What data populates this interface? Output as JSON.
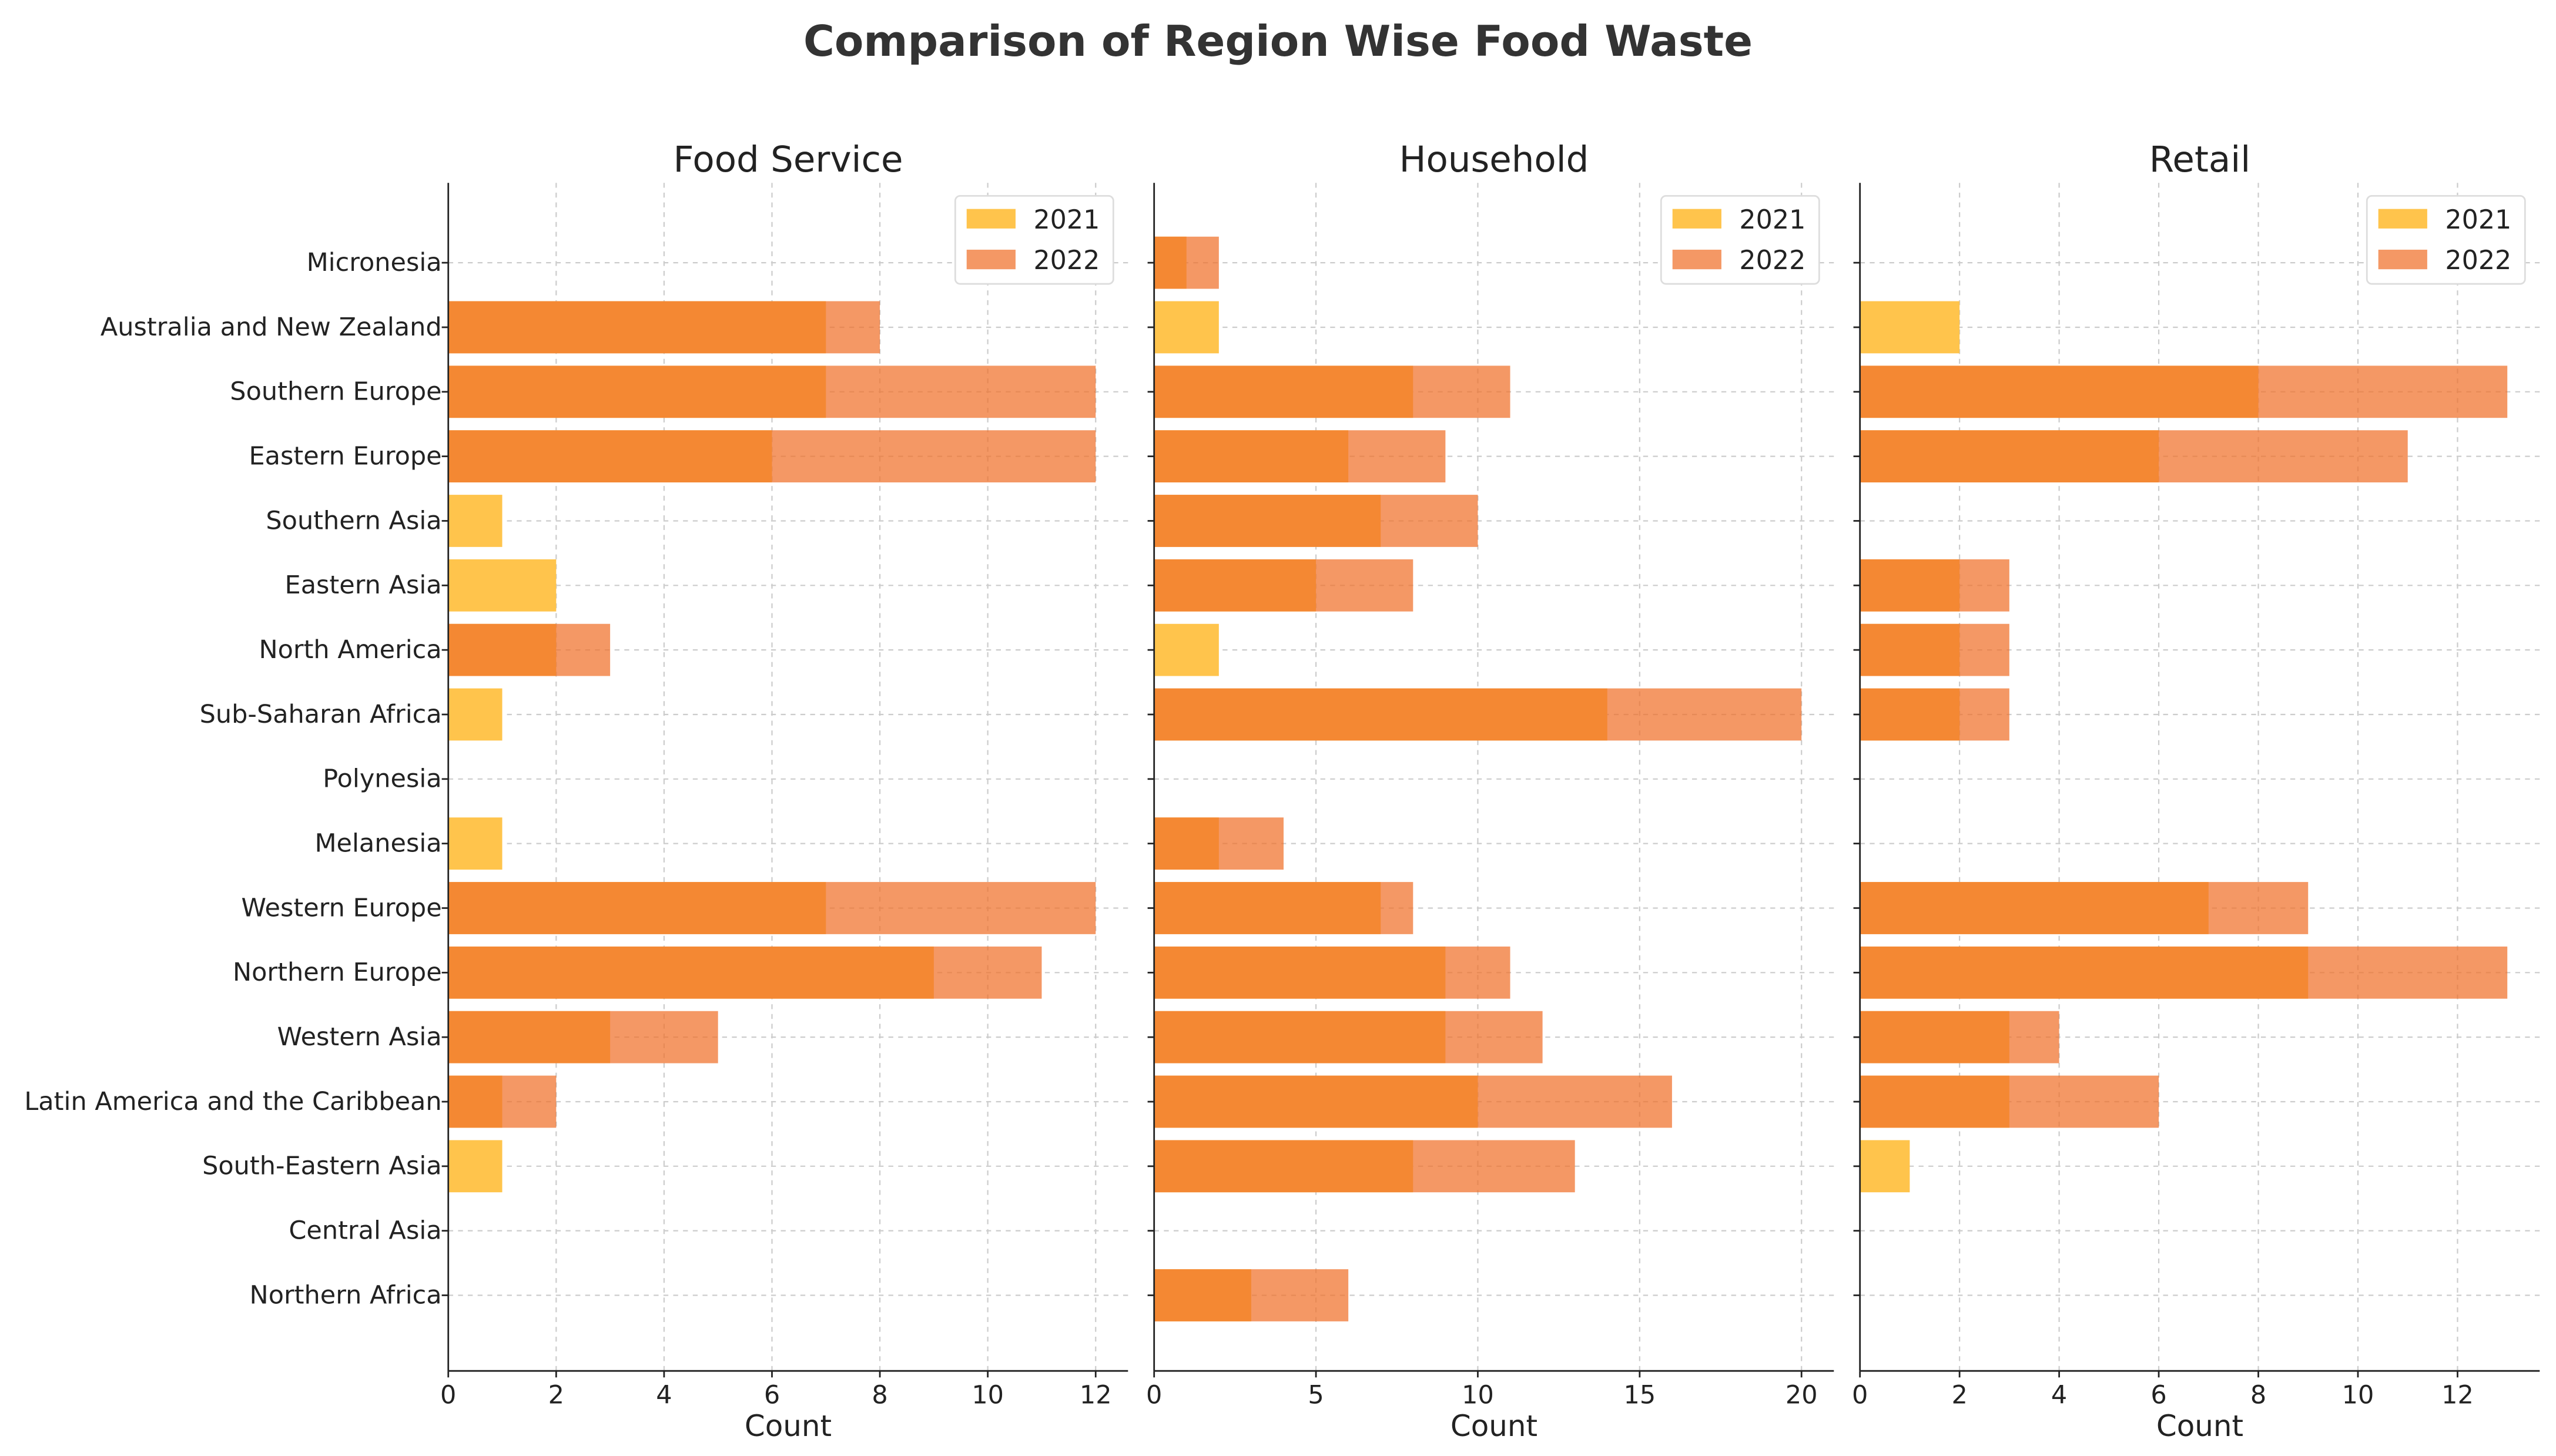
{
  "chart_data": {
    "type": "bar",
    "orientation": "horizontal",
    "title": "Comparison of Region Wise Food Waste",
    "categories": [
      "Micronesia",
      "Australia and New Zealand",
      "Southern Europe",
      "Eastern Europe",
      "Southern Asia",
      "Eastern Asia",
      "North America",
      "Sub-Saharan Africa",
      "Polynesia",
      "Melanesia",
      "Western Europe",
      "Northern Europe",
      "Western Asia",
      "Latin America and the Caribbean",
      "South-Eastern Asia",
      "Central Asia",
      "Northern Africa"
    ],
    "legend_position": "top-right",
    "grid": true,
    "colors": {
      "2021": "#FFC44C",
      "2022": "#F0702A"
    },
    "panels": [
      {
        "title": "Food Service",
        "xlabel": "Count",
        "xlim": [
          0,
          12.6
        ],
        "xticks": [
          0,
          2,
          4,
          6,
          8,
          10,
          12
        ],
        "series": [
          {
            "name": "2021",
            "values": [
              0,
              7,
              7,
              6,
              1,
              2,
              2,
              1,
              0,
              1,
              7,
              9,
              3,
              1,
              1,
              0,
              0
            ]
          },
          {
            "name": "2022",
            "values": [
              0,
              8,
              12,
              12,
              0,
              0,
              3,
              0,
              0,
              0,
              12,
              11,
              5,
              2,
              0,
              0,
              0
            ]
          }
        ]
      },
      {
        "title": "Household",
        "xlabel": "Count",
        "xlim": [
          0,
          21
        ],
        "xticks": [
          0,
          5,
          10,
          15,
          20
        ],
        "series": [
          {
            "name": "2021",
            "values": [
              1,
              2,
              8,
              6,
              7,
              5,
              2,
              14,
              0,
              2,
              7,
              9,
              9,
              10,
              8,
              0,
              3
            ]
          },
          {
            "name": "2022",
            "values": [
              2,
              0,
              11,
              9,
              10,
              8,
              0,
              20,
              0,
              4,
              8,
              11,
              12,
              16,
              13,
              0,
              6
            ]
          }
        ]
      },
      {
        "title": "Retail",
        "xlabel": "Count",
        "xlim": [
          0,
          13.65
        ],
        "xticks": [
          0,
          2,
          4,
          6,
          8,
          10,
          12
        ],
        "series": [
          {
            "name": "2021",
            "values": [
              0,
              2,
              8,
              6,
              0,
              2,
              2,
              2,
              0,
              0,
              7,
              9,
              3,
              3,
              1,
              0,
              0
            ]
          },
          {
            "name": "2022",
            "values": [
              0,
              0,
              13,
              11,
              0,
              3,
              3,
              3,
              0,
              0,
              9,
              13,
              4,
              6,
              0,
              0,
              0
            ]
          }
        ]
      }
    ]
  }
}
